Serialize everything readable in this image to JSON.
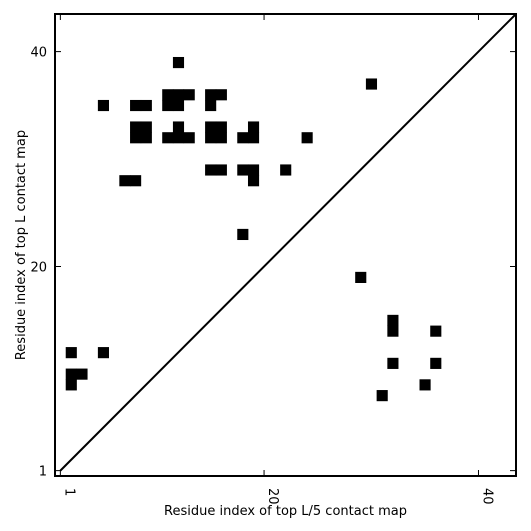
{
  "chart_data": {
    "type": "heatmap",
    "xlabel": "Residue index of top L/5 contact map",
    "ylabel": "Residue index of top L contact map",
    "xlim": [
      0.5,
      43.5
    ],
    "ylim": [
      0.5,
      43.5
    ],
    "xticks": [
      {
        "value": 1,
        "label": "1"
      },
      {
        "value": 20,
        "label": "20"
      },
      {
        "value": 40,
        "label": "40"
      }
    ],
    "yticks": [
      {
        "value": 1,
        "label": "1"
      },
      {
        "value": 20,
        "label": "20"
      },
      {
        "value": 40,
        "label": "40"
      }
    ],
    "diagonal": true,
    "upper_triangle_cells": [
      [
        12,
        39
      ],
      [
        5,
        35
      ],
      [
        8,
        35
      ],
      [
        9,
        35
      ],
      [
        11,
        36
      ],
      [
        12,
        36
      ],
      [
        13,
        36
      ],
      [
        15,
        36
      ],
      [
        16,
        36
      ],
      [
        11,
        35
      ],
      [
        12,
        35
      ],
      [
        15,
        35
      ],
      [
        30,
        37
      ],
      [
        8,
        33
      ],
      [
        9,
        33
      ],
      [
        8,
        32
      ],
      [
        9,
        32
      ],
      [
        12,
        33
      ],
      [
        11,
        32
      ],
      [
        12,
        32
      ],
      [
        13,
        32
      ],
      [
        15,
        33
      ],
      [
        16,
        33
      ],
      [
        15,
        32
      ],
      [
        16,
        32
      ],
      [
        18,
        32
      ],
      [
        19,
        33
      ],
      [
        19,
        32
      ],
      [
        24,
        32
      ],
      [
        15,
        29
      ],
      [
        16,
        29
      ],
      [
        18,
        29
      ],
      [
        19,
        29
      ],
      [
        19,
        28
      ],
      [
        22,
        29
      ],
      [
        7,
        28
      ],
      [
        8,
        28
      ],
      [
        18,
        23
      ]
    ],
    "lower_triangle_cells": [
      [
        29,
        19
      ],
      [
        32,
        15
      ],
      [
        32,
        14
      ],
      [
        36,
        14
      ],
      [
        2,
        12
      ],
      [
        5,
        12
      ],
      [
        32,
        11
      ],
      [
        36,
        11
      ],
      [
        2,
        10
      ],
      [
        3,
        10
      ],
      [
        2,
        9
      ],
      [
        35,
        9
      ],
      [
        31,
        8
      ]
    ]
  }
}
